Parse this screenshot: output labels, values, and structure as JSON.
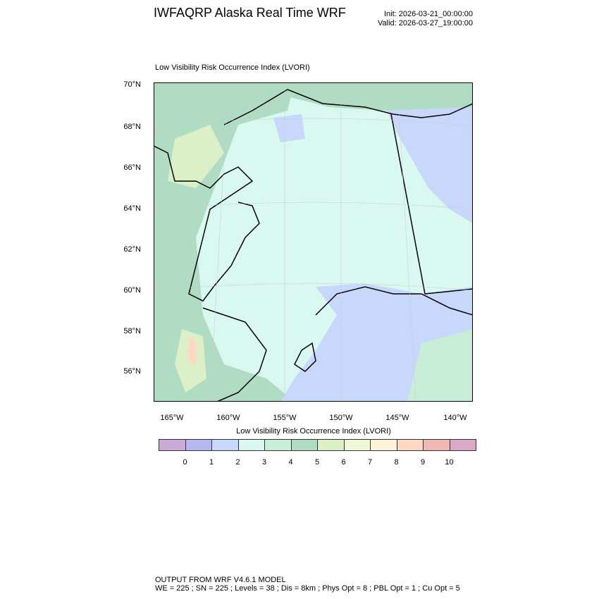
{
  "header": {
    "title": "IWFAQRP Alaska Real Time WRF",
    "init": "Init: 2026-03-21_00:00:00",
    "valid": "Valid: 2026-03-27_19:00:00"
  },
  "map": {
    "subtitle": "Low Visibility Risk Occurrence Index   (LVORI)",
    "lat_labels": [
      "70°N",
      "68°N",
      "66°N",
      "64°N",
      "62°N",
      "60°N",
      "58°N",
      "56°N"
    ],
    "lon_labels": [
      "165°W",
      "160°W",
      "155°W",
      "150°W",
      "145°W",
      "140°W"
    ]
  },
  "colorbar": {
    "title": "Low Visibility Risk Occurrence Index  (LVORI)",
    "colors": [
      "#ccaad8",
      "#b4b8ee",
      "#c8d8fc",
      "#d8f8f0",
      "#c8eed8",
      "#b0dcc4",
      "#dcf0c8",
      "#f0f8d8",
      "#fff4d8",
      "#ffd8c4",
      "#f0b8b4",
      "#dca8c8"
    ],
    "labels": [
      "0",
      "1",
      "2",
      "3",
      "4",
      "5",
      "6",
      "7",
      "8",
      "9",
      "10"
    ]
  },
  "footer": {
    "line1": "OUTPUT FROM WRF V4.6.1 MODEL",
    "line2": "WE = 225 ; SN = 225 ; Levels = 38 ; Dis = 8km ; Phys Opt = 8 ; PBL Opt = 1 ; Cu Opt = 5"
  }
}
